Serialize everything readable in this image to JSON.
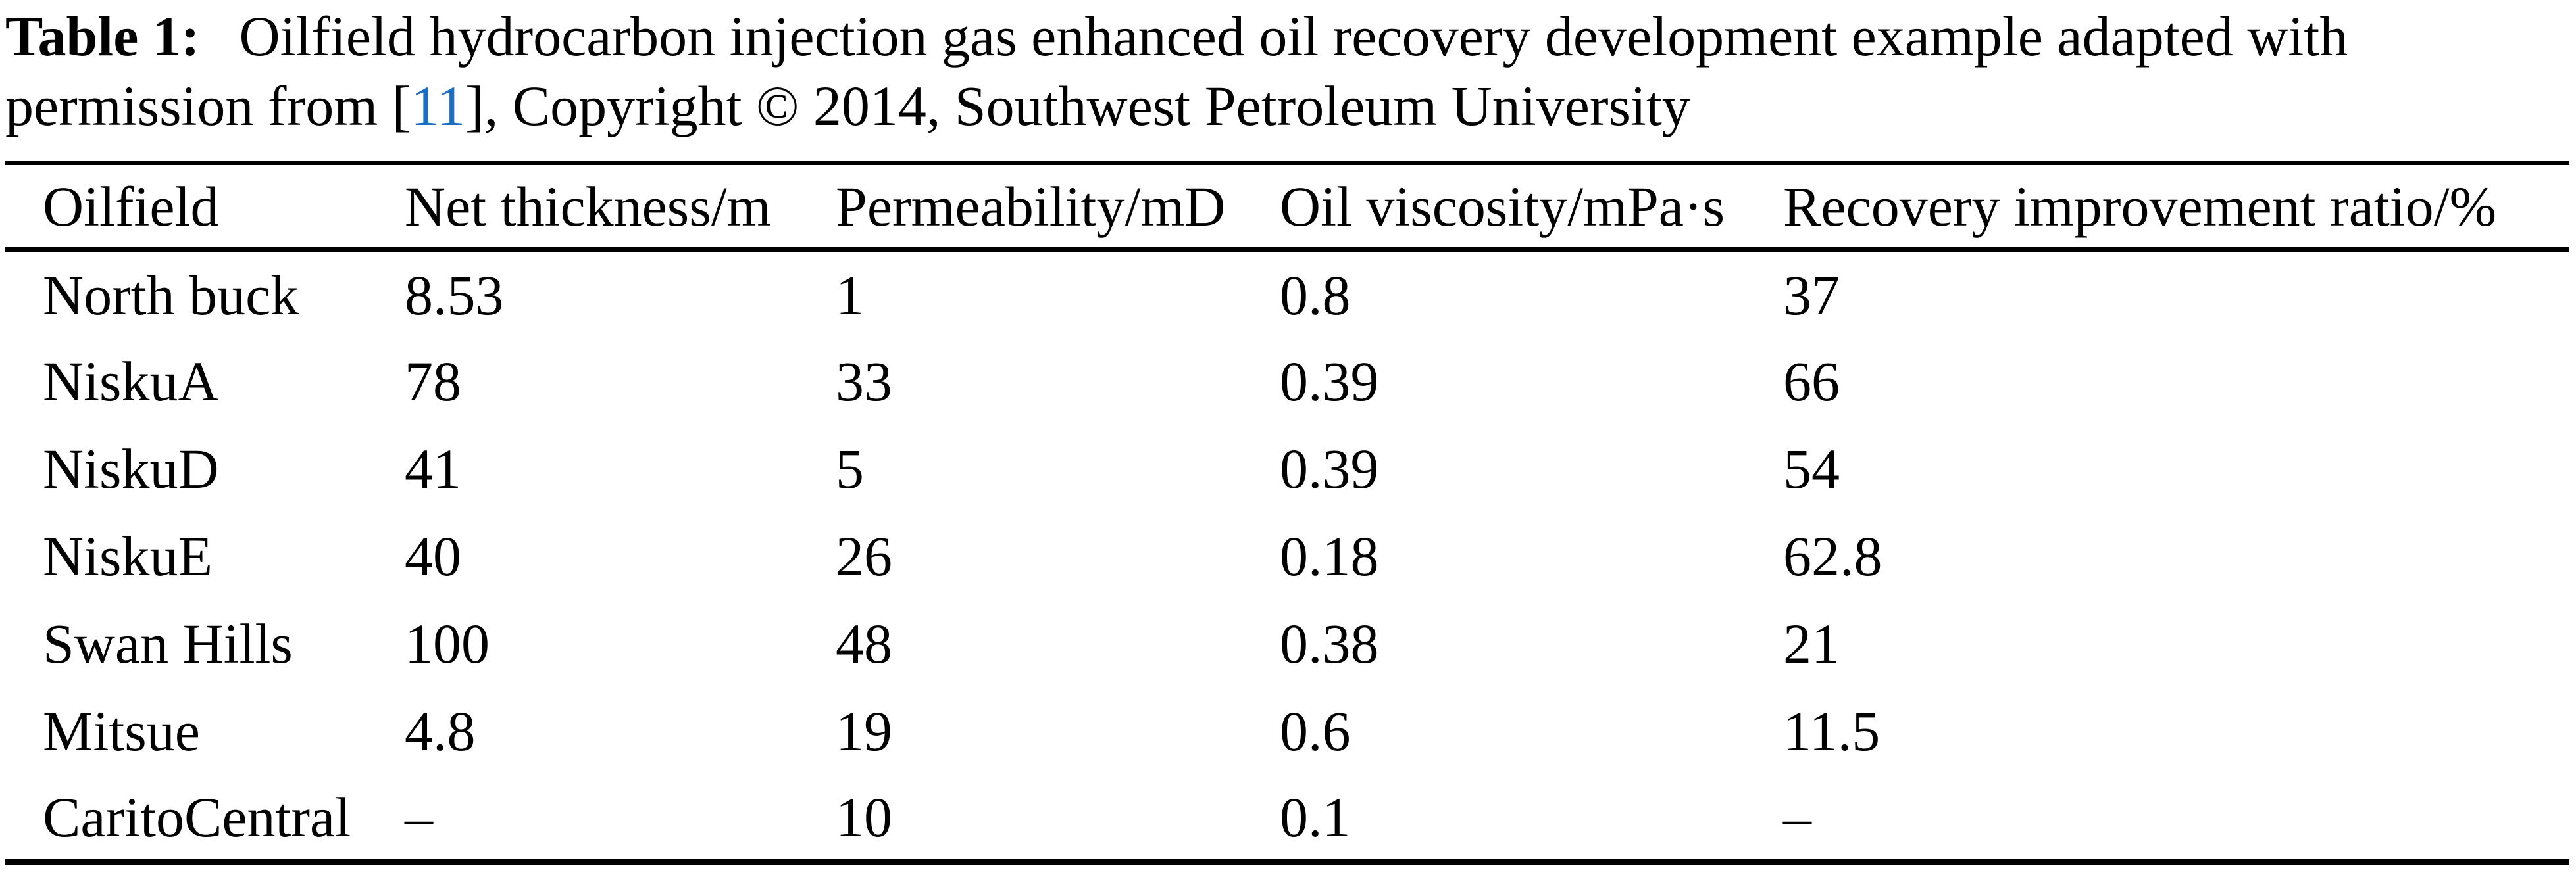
{
  "accent_color": "#1b6fc5",
  "caption": {
    "label": "Table 1:",
    "line1": "Oilfield hydrocarbon injection gas enhanced oil recovery development example adapted with",
    "line2_before_ref": "permission from [",
    "ref": "11",
    "line2_after_ref": "], Copyright © 2014, Southwest Petroleum University"
  },
  "table": {
    "columns": [
      "Oilfield",
      "Net thickness/m",
      "Permeability/mD",
      "Oil viscosity/mPa·s",
      "Recovery improvement ratio/%"
    ],
    "rows": [
      [
        "North buck",
        "8.53",
        "1",
        "0.8",
        "37"
      ],
      [
        "NiskuA",
        "78",
        "33",
        "0.39",
        "66"
      ],
      [
        "NiskuD",
        "41",
        "5",
        "0.39",
        "54"
      ],
      [
        "NiskuE",
        "40",
        "26",
        "0.18",
        "62.8"
      ],
      [
        "Swan Hills",
        "100",
        "48",
        "0.38",
        "21"
      ],
      [
        "Mitsue",
        "4.8",
        "19",
        "0.6",
        "11.5"
      ],
      [
        "CaritoCentral",
        "–",
        "10",
        "0.1",
        "–"
      ]
    ]
  },
  "chart_data": {
    "type": "table",
    "title": "Table 1: Oilfield hydrocarbon injection gas enhanced oil recovery development example",
    "columns": [
      "Oilfield",
      "Net thickness/m",
      "Permeability/mD",
      "Oil viscosity/mPa·s",
      "Recovery improvement ratio/%"
    ],
    "rows": [
      [
        "North buck",
        "8.53",
        "1",
        "0.8",
        "37"
      ],
      [
        "NiskuA",
        "78",
        "33",
        "0.39",
        "66"
      ],
      [
        "NiskuD",
        "41",
        "5",
        "0.39",
        "54"
      ],
      [
        "NiskuE",
        "40",
        "26",
        "0.18",
        "62.8"
      ],
      [
        "Swan Hills",
        "100",
        "48",
        "0.38",
        "21"
      ],
      [
        "Mitsue",
        "4.8",
        "19",
        "0.6",
        "11.5"
      ],
      [
        "CaritoCentral",
        "–",
        "10",
        "0.1",
        "–"
      ]
    ]
  }
}
